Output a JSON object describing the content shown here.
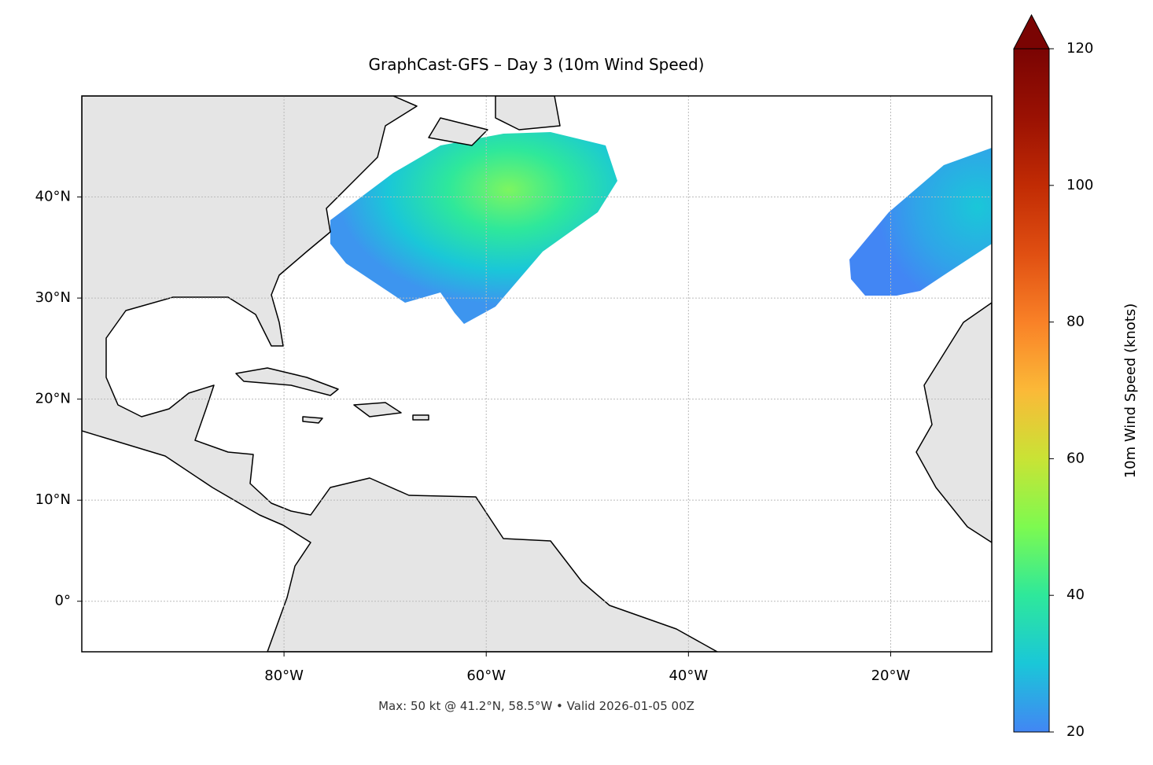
{
  "chart_data": {
    "type": "map",
    "title": "GraphCast-GFS – Day 3 (10m Wind Speed)",
    "footer": "Max: 50 kt @ 41.2°N, 58.5°W • Valid 2026-01-05 00Z",
    "xlim": [
      -100,
      -10
    ],
    "ylim": [
      -5,
      50
    ],
    "xticks": [
      {
        "value": -80,
        "label": "80°W"
      },
      {
        "value": -60,
        "label": "60°W"
      },
      {
        "value": -40,
        "label": "40°W"
      },
      {
        "value": -20,
        "label": "20°W"
      }
    ],
    "yticks": [
      {
        "value": 0,
        "label": "0°"
      },
      {
        "value": 10,
        "label": "10°N"
      },
      {
        "value": 20,
        "label": "20°N"
      },
      {
        "value": 30,
        "label": "30°N"
      },
      {
        "value": 40,
        "label": "40°N"
      }
    ],
    "grid": true,
    "colorbar": {
      "label": "10m Wind Speed (knots)",
      "clim": [
        20,
        120
      ],
      "ticks": [
        20,
        40,
        60,
        80,
        100,
        120
      ],
      "colors": [
        "#4286f4",
        "#1ac7d8",
        "#2ee89b",
        "#7dfa50",
        "#c9e335",
        "#fbb938",
        "#f98127",
        "#e04f12",
        "#c12b04",
        "#9a1103",
        "#7a0403"
      ]
    }
  }
}
